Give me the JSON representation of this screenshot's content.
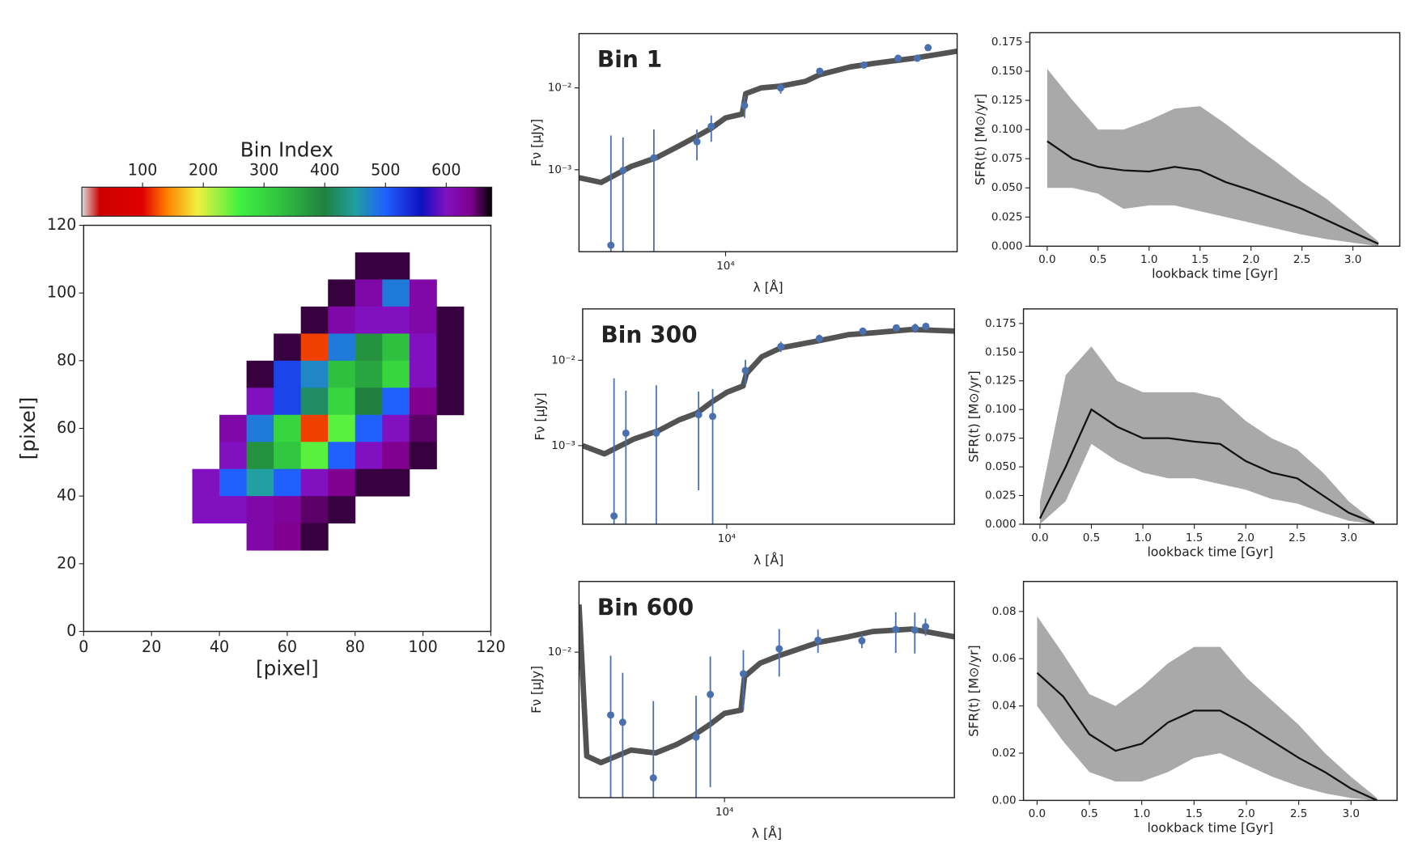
{
  "chart_data": [
    {
      "type": "heatmap",
      "xlabel": "[pixel]",
      "ylabel": "[pixel]",
      "colorbar_label": "Bin Index",
      "xlim": [
        0,
        120
      ],
      "ylim": [
        0,
        120
      ],
      "xticks": [
        0,
        20,
        40,
        60,
        80,
        100,
        120
      ],
      "yticks": [
        0,
        20,
        40,
        60,
        80,
        100,
        120
      ],
      "clim": [
        0,
        675
      ],
      "cticks": [
        100,
        200,
        300,
        400,
        500,
        600
      ],
      "colorscale": [
        [
          0,
          "#dcdcdc"
        ],
        [
          30,
          "#cc0000"
        ],
        [
          100,
          "#e00000"
        ],
        [
          140,
          "#ff8000"
        ],
        [
          190,
          "#f0f040"
        ],
        [
          260,
          "#40f040"
        ],
        [
          330,
          "#30c040"
        ],
        [
          400,
          "#208040"
        ],
        [
          450,
          "#20a0a0"
        ],
        [
          500,
          "#2060ff"
        ],
        [
          560,
          "#1010c0"
        ],
        [
          600,
          "#8010c0"
        ],
        [
          640,
          "#800090"
        ],
        [
          675,
          "#000000"
        ]
      ],
      "x_edges": [
        24,
        32,
        40,
        48,
        56,
        64,
        72,
        80,
        88,
        96,
        104,
        112
      ],
      "y_edges": [
        112,
        104,
        96,
        88,
        80,
        72,
        64,
        56,
        48,
        40,
        32,
        24
      ],
      "z": [
        [
          null,
          null,
          null,
          null,
          null,
          null,
          null,
          660,
          660,
          null,
          null
        ],
        [
          null,
          null,
          null,
          null,
          null,
          null,
          660,
          620,
          480,
          620,
          null
        ],
        [
          null,
          null,
          null,
          null,
          null,
          660,
          620,
          600,
          600,
          620,
          660
        ],
        [
          null,
          null,
          null,
          null,
          660,
          120,
          480,
          380,
          330,
          600,
          660
        ],
        [
          null,
          null,
          null,
          660,
          520,
          470,
          330,
          360,
          300,
          600,
          660
        ],
        [
          null,
          null,
          null,
          600,
          520,
          420,
          300,
          400,
          500,
          640,
          660
        ],
        [
          null,
          null,
          620,
          480,
          300,
          120,
          250,
          500,
          600,
          650,
          null
        ],
        [
          null,
          null,
          600,
          380,
          320,
          250,
          500,
          600,
          640,
          660,
          null
        ],
        [
          null,
          600,
          500,
          450,
          500,
          600,
          640,
          660,
          660,
          null,
          null
        ],
        [
          null,
          600,
          600,
          620,
          630,
          650,
          660,
          null,
          null,
          null,
          null
        ],
        [
          null,
          null,
          null,
          620,
          640,
          660,
          null,
          null,
          null,
          null,
          null
        ]
      ]
    },
    {
      "type": "spectrum",
      "panel_label": "Bin 1",
      "xlabel": "λ [Å]",
      "ylabel": "Fν [μJy]",
      "xscale": "log",
      "yscale": "log",
      "xlim": [
        3400,
        55000
      ],
      "ylim": [
        0.0001,
        0.046
      ],
      "xticks": [
        {
          "value": 10000,
          "label": "10⁴"
        }
      ],
      "yticks": [
        {
          "value": 0.001,
          "label": "10⁻³"
        },
        {
          "value": 0.01,
          "label": "10⁻²"
        }
      ],
      "model_color": "#1a1a1a",
      "point_color": "#4a70b0",
      "model": {
        "x": [
          3400,
          4000,
          5000,
          6000,
          7000,
          8000,
          9000,
          10000,
          11300,
          11600,
          13000,
          15000,
          18000,
          20000,
          25000,
          30000,
          40000,
          55000
        ],
        "y": [
          0.0008,
          0.0007,
          0.0011,
          0.0014,
          0.0019,
          0.0025,
          0.0032,
          0.0043,
          0.0048,
          0.0085,
          0.01,
          0.0105,
          0.012,
          0.0145,
          0.018,
          0.02,
          0.023,
          0.028
        ]
      },
      "photometry": {
        "x": [
          4300,
          4700,
          5900,
          8100,
          9000,
          11500,
          15000,
          20000,
          27700,
          35600,
          41000,
          44400
        ],
        "y": [
          0.00012,
          0.00098,
          0.0014,
          0.0022,
          0.0034,
          0.0061,
          0.01,
          0.016,
          0.019,
          0.023,
          0.023,
          0.031
        ],
        "errors": [
          0.0025,
          0.0015,
          0.0017,
          0.0009,
          0.0012,
          0.0018,
          0.0015,
          0.0015,
          0.0015,
          0.0015,
          0.0015,
          0.002
        ]
      }
    },
    {
      "type": "sfh",
      "xlabel": "lookback time [Gyr]",
      "ylabel": "SFR(t) [M⊙/yr]",
      "xlim": [
        -0.17,
        3.46
      ],
      "ylim": [
        0,
        0.183
      ],
      "xticks": [
        {
          "value": 0,
          "label": "0.0"
        },
        0.5,
        {
          "value": 1,
          "label": "1.0"
        },
        1.5,
        {
          "value": 2,
          "label": "2.0"
        },
        2.5,
        {
          "value": 3,
          "label": "3.0"
        }
      ],
      "yticks": [
        {
          "value": 0,
          "label": "0.000"
        },
        0.025,
        {
          "value": 0.05,
          "label": "0.050"
        },
        0.075,
        {
          "value": 0.1,
          "label": "0.100"
        },
        0.125,
        {
          "value": 0.15,
          "label": "0.150"
        },
        0.175
      ],
      "line_color": "#111111",
      "band_color": "#8c8c8c",
      "x": [
        0,
        0.25,
        0.5,
        0.75,
        1,
        1.25,
        1.5,
        1.75,
        2,
        2.25,
        2.5,
        2.75,
        3,
        3.25
      ],
      "median": [
        0.09,
        0.075,
        0.068,
        0.065,
        0.064,
        0.068,
        0.065,
        0.055,
        0.048,
        0.04,
        0.032,
        0.022,
        0.012,
        0.002
      ],
      "upper": [
        0.152,
        0.125,
        0.1,
        0.1,
        0.108,
        0.118,
        0.12,
        0.105,
        0.088,
        0.072,
        0.055,
        0.04,
        0.022,
        0.004
      ],
      "lower": [
        0.05,
        0.05,
        0.045,
        0.032,
        0.035,
        0.035,
        0.03,
        0.025,
        0.02,
        0.015,
        0.01,
        0.006,
        0.003,
        0
      ]
    },
    {
      "type": "spectrum",
      "panel_label": "Bin 300",
      "xlabel": "λ [Å]",
      "ylabel": "Fν [μJy]",
      "xscale": "log",
      "yscale": "log",
      "xlim": [
        3400,
        55000
      ],
      "ylim": [
        0.00012,
        0.04
      ],
      "xticks": [
        {
          "value": 10000,
          "label": "10⁴"
        }
      ],
      "yticks": [
        {
          "value": 0.001,
          "label": "10⁻³"
        },
        {
          "value": 0.01,
          "label": "10⁻²"
        }
      ],
      "model_color": "#1a1a1a",
      "point_color": "#4a70b0",
      "model": {
        "x": [
          3400,
          4000,
          5000,
          6000,
          7000,
          8000,
          9000,
          10000,
          11300,
          11600,
          13000,
          15000,
          20000,
          25000,
          30000,
          40000,
          55000
        ],
        "y": [
          0.001,
          0.0008,
          0.0012,
          0.0015,
          0.002,
          0.0024,
          0.0033,
          0.0042,
          0.005,
          0.007,
          0.011,
          0.014,
          0.017,
          0.02,
          0.021,
          0.023,
          0.022
        ]
      },
      "photometry": {
        "x": [
          4300,
          4700,
          5900,
          8100,
          9000,
          11500,
          15000,
          20000,
          27700,
          35600,
          41000,
          44400
        ],
        "y": [
          0.00015,
          0.0014,
          0.0014,
          0.0023,
          0.0022,
          0.0076,
          0.0145,
          0.018,
          0.022,
          0.024,
          0.024,
          0.025
        ],
        "errors": [
          0.006,
          0.003,
          0.0037,
          0.002,
          0.0024,
          0.0025,
          0.002,
          0.002,
          0.002,
          0.002,
          0.003,
          0.002
        ]
      }
    },
    {
      "type": "sfh",
      "xlabel": "lookback time [Gyr]",
      "ylabel": "SFR(t) [M⊙/yr]",
      "xlim": [
        -0.16,
        3.47
      ],
      "ylim": [
        0,
        0.1877
      ],
      "xticks": [
        {
          "value": 0,
          "label": "0.0"
        },
        0.5,
        {
          "value": 1,
          "label": "1.0"
        },
        1.5,
        {
          "value": 2,
          "label": "2.0"
        },
        2.5,
        {
          "value": 3,
          "label": "3.0"
        }
      ],
      "yticks": [
        {
          "value": 0,
          "label": "0.000"
        },
        0.025,
        {
          "value": 0.05,
          "label": "0.050"
        },
        0.075,
        {
          "value": 0.1,
          "label": "0.100"
        },
        0.125,
        {
          "value": 0.15,
          "label": "0.150"
        },
        0.175
      ],
      "line_color": "#111111",
      "band_color": "#8c8c8c",
      "x": [
        0,
        0.25,
        0.5,
        0.75,
        1,
        1.25,
        1.5,
        1.75,
        2,
        2.25,
        2.5,
        2.75,
        3,
        3.25
      ],
      "median": [
        0.005,
        0.05,
        0.1,
        0.085,
        0.075,
        0.075,
        0.072,
        0.07,
        0.055,
        0.045,
        0.04,
        0.025,
        0.01,
        0.001
      ],
      "upper": [
        0.02,
        0.13,
        0.155,
        0.125,
        0.115,
        0.115,
        0.115,
        0.11,
        0.09,
        0.075,
        0.065,
        0.045,
        0.02,
        0.002
      ],
      "lower": [
        0,
        0.02,
        0.07,
        0.055,
        0.045,
        0.04,
        0.04,
        0.035,
        0.03,
        0.022,
        0.018,
        0.01,
        0.003,
        0
      ]
    },
    {
      "type": "spectrum",
      "panel_label": "Bin 600",
      "xlabel": "λ [Å]",
      "ylabel": "Fν [μJy]",
      "xscale": "log",
      "yscale": "log",
      "xlim": [
        3400,
        55000
      ],
      "ylim": [
        0.0012,
        0.028
      ],
      "xticks": [
        {
          "value": 10000,
          "label": "10⁴"
        }
      ],
      "yticks": [
        {
          "value": 0.01,
          "label": "10⁻²"
        }
      ],
      "model_color": "#1a1a1a",
      "point_color": "#4a70b0",
      "model": {
        "x": [
          3400,
          3600,
          4000,
          5000,
          6000,
          7000,
          8000,
          9000,
          10000,
          11300,
          11600,
          13000,
          15000,
          20000,
          25000,
          30000,
          40000,
          55000
        ],
        "y": [
          0.02,
          0.0022,
          0.002,
          0.0024,
          0.0023,
          0.0026,
          0.003,
          0.0035,
          0.0041,
          0.0043,
          0.007,
          0.0085,
          0.0095,
          0.0115,
          0.0125,
          0.0135,
          0.014,
          0.0125
        ]
      },
      "photometry": {
        "x": [
          4300,
          4700,
          5900,
          8100,
          9000,
          11500,
          15000,
          20000,
          27700,
          35600,
          41000,
          44400
        ],
        "y": [
          0.004,
          0.0036,
          0.0016,
          0.0029,
          0.0054,
          0.0073,
          0.0105,
          0.0119,
          0.0118,
          0.0139,
          0.0138,
          0.0145
        ],
        "errors": [
          0.0055,
          0.0038,
          0.0033,
          0.0024,
          0.004,
          0.003,
          0.0035,
          0.002,
          0.0012,
          0.004,
          0.004,
          0.0018
        ]
      }
    },
    {
      "type": "sfh",
      "xlabel": "lookback time [Gyr]",
      "ylabel": "SFR(t) [M⊙/yr]",
      "xlim": [
        -0.13,
        3.44
      ],
      "ylim": [
        0,
        0.0927
      ],
      "xticks": [
        {
          "value": 0,
          "label": "0.0"
        },
        0.5,
        {
          "value": 1,
          "label": "1.0"
        },
        1.5,
        {
          "value": 2,
          "label": "2.0"
        },
        2.5,
        {
          "value": 3,
          "label": "3.0"
        }
      ],
      "yticks": [
        {
          "value": 0,
          "label": "0.00"
        },
        0.02,
        0.04,
        0.06,
        0.08
      ],
      "line_color": "#111111",
      "band_color": "#8c8c8c",
      "x": [
        0,
        0.25,
        0.5,
        0.75,
        1,
        1.25,
        1.5,
        1.75,
        2,
        2.25,
        2.5,
        2.75,
        3,
        3.25
      ],
      "median": [
        0.054,
        0.044,
        0.028,
        0.021,
        0.024,
        0.033,
        0.038,
        0.038,
        0.032,
        0.025,
        0.018,
        0.012,
        0.005,
        0
      ],
      "upper": [
        0.078,
        0.062,
        0.045,
        0.04,
        0.048,
        0.058,
        0.065,
        0.065,
        0.052,
        0.042,
        0.032,
        0.02,
        0.01,
        0.001
      ],
      "lower": [
        0.04,
        0.025,
        0.012,
        0.008,
        0.008,
        0.012,
        0.018,
        0.02,
        0.015,
        0.01,
        0.006,
        0.003,
        0.001,
        0
      ]
    }
  ]
}
